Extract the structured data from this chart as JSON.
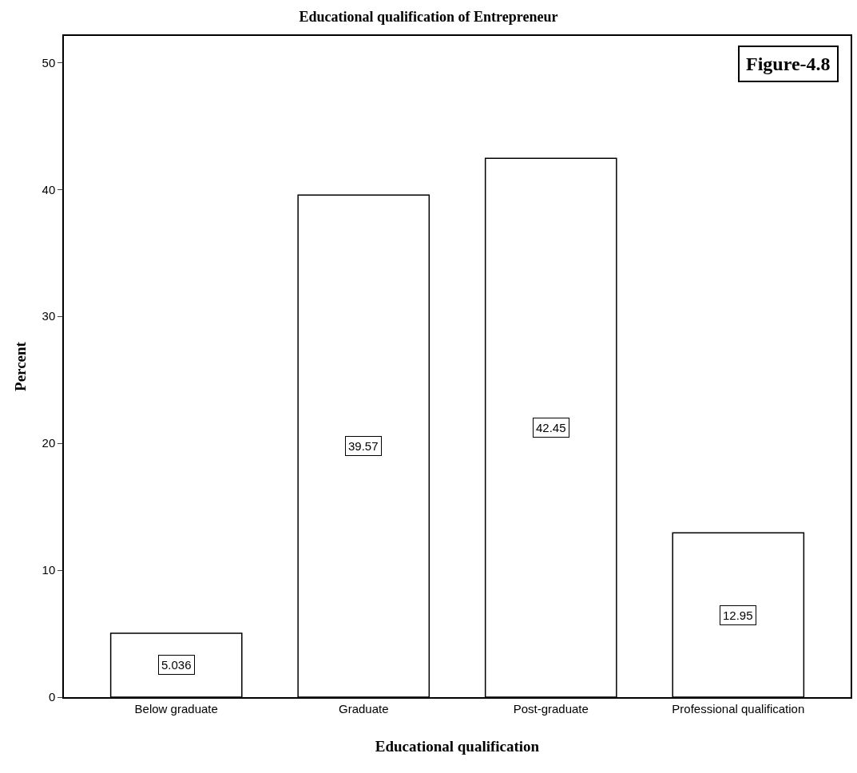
{
  "chart_data": {
    "type": "bar",
    "title": "Educational qualification of Entrepreneur",
    "xlabel": "Educational qualification",
    "ylabel": "Percent",
    "categories": [
      "Below graduate",
      "Graduate",
      "Post-graduate",
      "Professional qualification"
    ],
    "values": [
      5.036,
      39.57,
      42.45,
      12.95
    ],
    "color": "#ffffff",
    "ylim": [
      0,
      52.1
    ],
    "yticks": [
      0,
      10,
      20,
      30,
      40,
      50
    ],
    "data_labels": true,
    "annotations": [
      "Figure-4.8"
    ]
  }
}
